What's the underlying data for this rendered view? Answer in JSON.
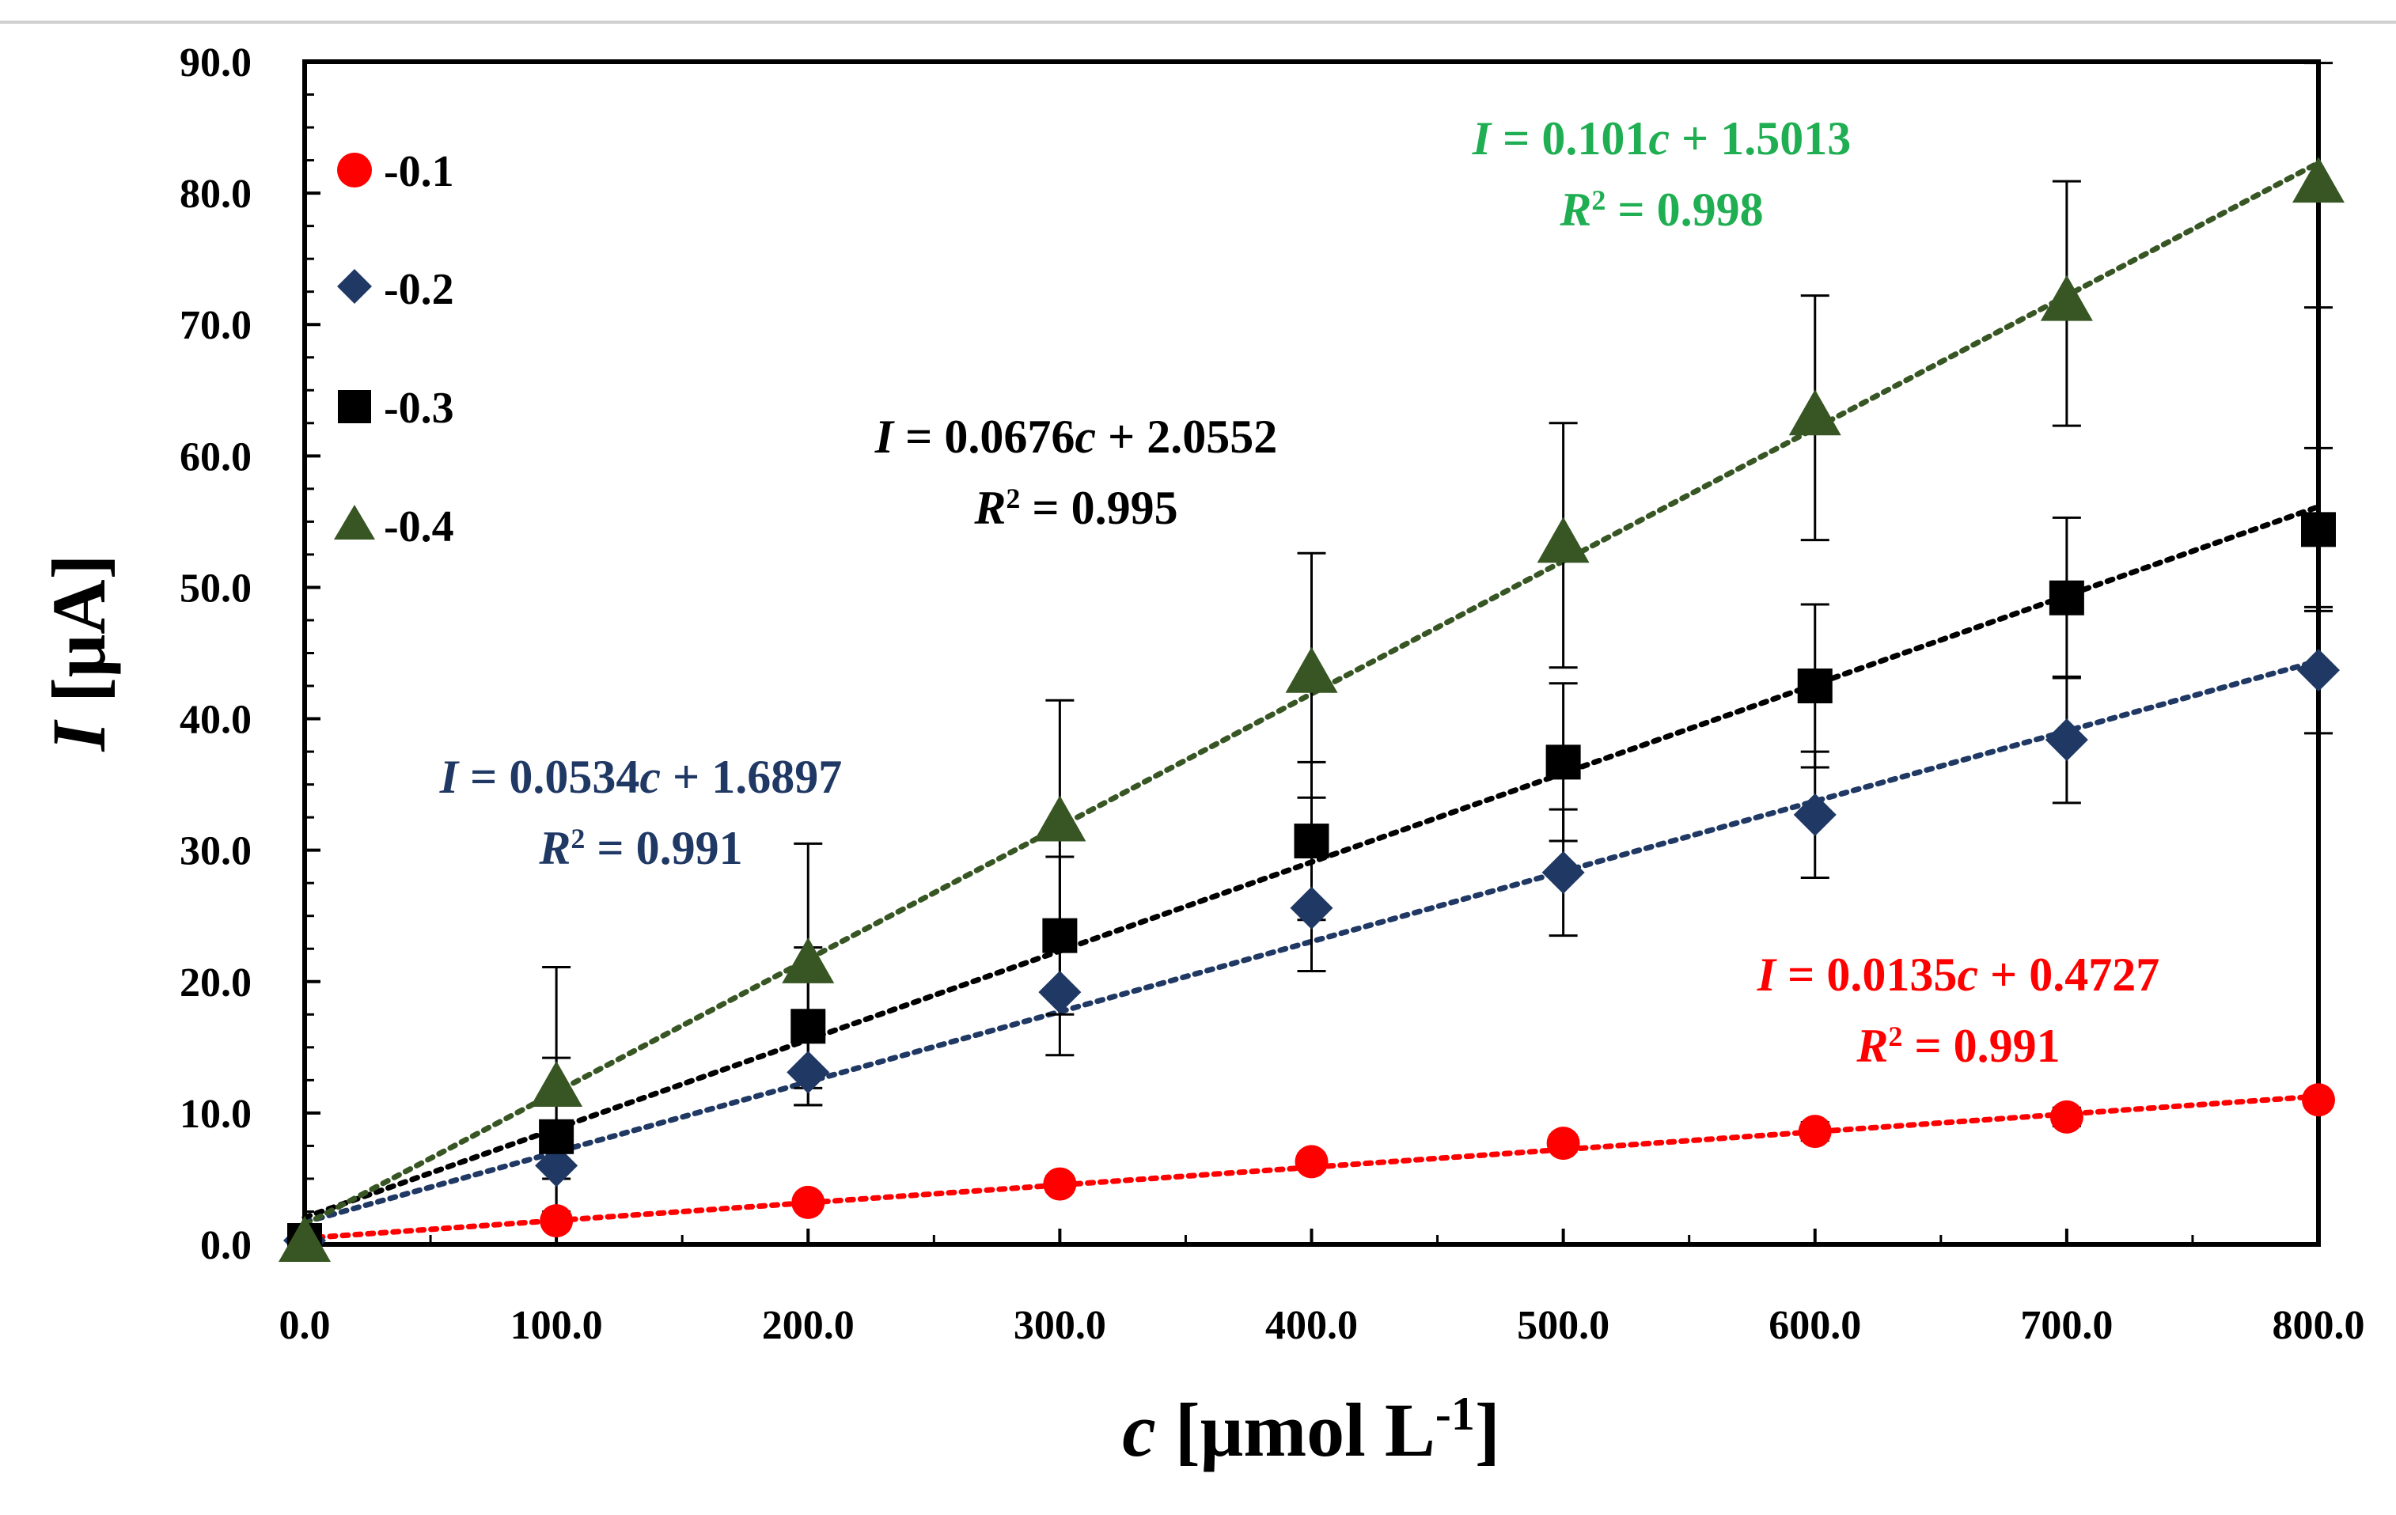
{
  "chart_data": {
    "type": "scatter",
    "xlabel_italic": "c",
    "xlabel_rest": " [μmol L",
    "xlabel_sup": "-1",
    "xlabel_end": "]",
    "ylabel_italic": "I",
    "ylabel_rest": " [μA]",
    "xlim": [
      0,
      800
    ],
    "ylim": [
      0,
      90
    ],
    "x_ticks": [
      0,
      100,
      200,
      300,
      400,
      500,
      600,
      700,
      800
    ],
    "y_ticks": [
      0,
      10,
      20,
      30,
      40,
      50,
      60,
      70,
      80,
      90
    ],
    "x_tick_labels": [
      "0.0",
      "100.0",
      "200.0",
      "300.0",
      "400.0",
      "500.0",
      "600.0",
      "700.0",
      "800.0"
    ],
    "y_tick_labels": [
      "0.0",
      "10.0",
      "20.0",
      "30.0",
      "40.0",
      "50.0",
      "60.0",
      "70.0",
      "80.0",
      "90.0"
    ],
    "x": [
      0,
      100,
      200,
      300,
      400,
      500,
      600,
      700,
      800
    ],
    "series": [
      {
        "name": "-0.1",
        "marker": "circle",
        "color": "#ff0000",
        "values": [
          0.3,
          1.8,
          3.2,
          4.6,
          6.3,
          7.7,
          8.6,
          9.7,
          11.0
        ],
        "errors": [
          0.3,
          0.5,
          0.5,
          0.6,
          0.6,
          0.6,
          0.7,
          0.7,
          0.5
        ],
        "fit": {
          "slope": 0.0135,
          "intercept": 0.4727
        },
        "equation": {
          "italic_i": "I",
          "rest": " = 0.0135",
          "italic_c": "c",
          "rest2": " + 0.4727",
          "r2_italic": "R",
          "r2_sup": "2",
          "r2_rest": " = 0.991"
        }
      },
      {
        "name": "-0.2",
        "marker": "diamond",
        "color": "#203864",
        "values": [
          0.3,
          6.0,
          13.1,
          19.2,
          25.6,
          28.3,
          32.7,
          38.4,
          43.7
        ],
        "errors": [
          0.3,
          1.0,
          2.5,
          4.8,
          4.8,
          4.8,
          4.8,
          4.8,
          4.8
        ],
        "fit": {
          "slope": 0.0534,
          "intercept": 1.6897
        },
        "equation": {
          "italic_i": "I",
          "rest": " = 0.0534",
          "italic_c": "c",
          "rest2": " + 1.6897",
          "r2_italic": "R",
          "r2_sup": "2",
          "r2_rest": " = 0.991"
        }
      },
      {
        "name": "-0.3",
        "marker": "square",
        "color": "#000000",
        "values": [
          0.3,
          8.2,
          16.6,
          23.5,
          30.7,
          36.7,
          42.5,
          49.2,
          54.4
        ],
        "errors": [
          0.3,
          6.0,
          6.0,
          6.0,
          6.0,
          6.0,
          6.2,
          6.1,
          6.2
        ],
        "fit": {
          "slope": 0.0676,
          "intercept": 2.0552
        },
        "equation": {
          "italic_i": "I",
          "rest": " = 0.0676",
          "italic_c": "c",
          "rest2": " + 2.0552",
          "r2_italic": "R",
          "r2_sup": "2",
          "r2_rest": " = 0.995"
        }
      },
      {
        "name": "-0.4",
        "marker": "triangle",
        "color": "#375623",
        "values": [
          0.0,
          11.8,
          21.2,
          32.0,
          43.3,
          53.2,
          62.9,
          71.6,
          80.6
        ],
        "errors": [
          0.3,
          9.3,
          9.3,
          9.4,
          9.3,
          9.3,
          9.3,
          9.3,
          9.3
        ],
        "fit": {
          "slope": 0.101,
          "intercept": 1.5013
        },
        "equation": {
          "italic_i": "I",
          "rest": " = 0.101",
          "italic_c": "c",
          "rest2": " + 1.5013",
          "r2_italic": "R",
          "r2_sup": "2",
          "r2_rest": " = 0.998"
        }
      }
    ],
    "equation_colors": {
      "-0.1": "#ff0000",
      "-0.2": "#203864",
      "-0.3": "#000000",
      "-0.4": "#1fae52"
    },
    "legend_position": "top-left"
  }
}
